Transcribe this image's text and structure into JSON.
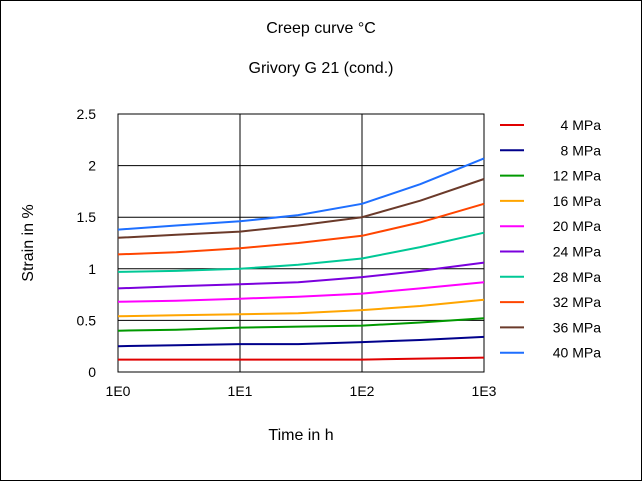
{
  "chart_data": {
    "type": "line",
    "title": "Creep curve °C",
    "subtitle": "Grivory G 21 (cond.)",
    "xlabel": "Time in h",
    "ylabel": "Strain in %",
    "xscale": "log",
    "xlim": [
      1,
      1000
    ],
    "ylim": [
      0,
      2.5
    ],
    "x_ticks": [
      {
        "value": 1,
        "label": "1E0"
      },
      {
        "value": 10,
        "label": "1E1"
      },
      {
        "value": 100,
        "label": "1E2"
      },
      {
        "value": 1000,
        "label": "1E3"
      }
    ],
    "y_ticks": [
      {
        "value": 0,
        "label": "0"
      },
      {
        "value": 0.5,
        "label": "0.5"
      },
      {
        "value": 1,
        "label": "1"
      },
      {
        "value": 1.5,
        "label": "1.5"
      },
      {
        "value": 2,
        "label": "2"
      },
      {
        "value": 2.5,
        "label": "2.5"
      }
    ],
    "grid": true,
    "legend_position": "right",
    "x": [
      1,
      3,
      10,
      30,
      100,
      300,
      1000
    ],
    "series": [
      {
        "name": "4 MPa",
        "color": "#e00000",
        "values": [
          0.12,
          0.12,
          0.12,
          0.12,
          0.12,
          0.13,
          0.14
        ]
      },
      {
        "name": "8 MPa",
        "color": "#00008b",
        "values": [
          0.25,
          0.26,
          0.27,
          0.27,
          0.29,
          0.31,
          0.34
        ]
      },
      {
        "name": "12 MPa",
        "color": "#009900",
        "values": [
          0.4,
          0.41,
          0.43,
          0.44,
          0.45,
          0.48,
          0.52
        ]
      },
      {
        "name": "16 MPa",
        "color": "#ffa500",
        "values": [
          0.54,
          0.55,
          0.56,
          0.57,
          0.6,
          0.64,
          0.7
        ]
      },
      {
        "name": "20 MPa",
        "color": "#ff00ff",
        "values": [
          0.68,
          0.69,
          0.71,
          0.73,
          0.76,
          0.81,
          0.87
        ]
      },
      {
        "name": "24 MPa",
        "color": "#7b00dd",
        "values": [
          0.81,
          0.83,
          0.85,
          0.87,
          0.92,
          0.98,
          1.06
        ]
      },
      {
        "name": "28 MPa",
        "color": "#00c896",
        "values": [
          0.97,
          0.98,
          1.0,
          1.04,
          1.1,
          1.21,
          1.35
        ]
      },
      {
        "name": "32 MPa",
        "color": "#ff4500",
        "values": [
          1.14,
          1.16,
          1.2,
          1.25,
          1.32,
          1.45,
          1.63
        ]
      },
      {
        "name": "36 MPa",
        "color": "#6b3a2a",
        "values": [
          1.3,
          1.33,
          1.36,
          1.42,
          1.5,
          1.66,
          1.87
        ]
      },
      {
        "name": "40 MPa",
        "color": "#1e6fff",
        "values": [
          1.38,
          1.42,
          1.46,
          1.52,
          1.63,
          1.82,
          2.07
        ]
      }
    ]
  }
}
